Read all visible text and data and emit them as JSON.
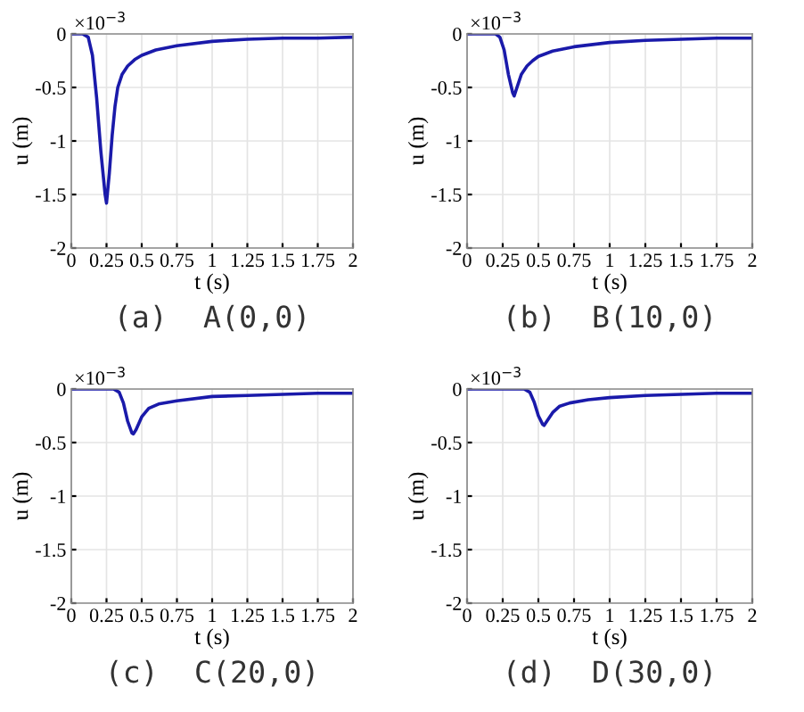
{
  "chart_data": [
    {
      "type": "line",
      "title": "(a)  A(0,0)",
      "xlabel": "t (s)",
      "ylabel": "u (m)",
      "annotations": [
        "×10$^{−3}$"
      ],
      "grid": true,
      "xlim": [
        0,
        2
      ],
      "ylim": [
        -2,
        0
      ],
      "xticks": [
        0,
        0.25,
        0.5,
        0.75,
        1,
        1.25,
        1.5,
        1.75,
        2
      ],
      "yticks": [
        -2,
        -1.5,
        -1,
        -0.5,
        0
      ],
      "x": [
        0,
        0.08,
        0.12,
        0.15,
        0.18,
        0.21,
        0.24,
        0.25,
        0.27,
        0.29,
        0.31,
        0.33,
        0.36,
        0.4,
        0.45,
        0.5,
        0.6,
        0.75,
        1,
        1.25,
        1.5,
        1.75,
        2
      ],
      "series": [
        {
          "color": "#1a1aaa",
          "values": [
            0,
            0,
            -0.03,
            -0.2,
            -0.6,
            -1.1,
            -1.5,
            -1.58,
            -1.3,
            -0.95,
            -0.68,
            -0.5,
            -0.38,
            -0.3,
            -0.24,
            -0.2,
            -0.15,
            -0.11,
            -0.07,
            -0.05,
            -0.04,
            -0.04,
            -0.03
          ]
        }
      ]
    },
    {
      "type": "line",
      "title": "(b)  B(10,0)",
      "xlabel": "t (s)",
      "ylabel": "u (m)",
      "annotations": [
        "×10$^{−3}$"
      ],
      "grid": true,
      "xlim": [
        0,
        2
      ],
      "ylim": [
        -2,
        0
      ],
      "xticks": [
        0,
        0.25,
        0.5,
        0.75,
        1,
        1.25,
        1.5,
        1.75,
        2
      ],
      "yticks": [
        -2,
        -1.5,
        -1,
        -0.5,
        0
      ],
      "x": [
        0,
        0.2,
        0.23,
        0.26,
        0.29,
        0.32,
        0.33,
        0.35,
        0.38,
        0.42,
        0.46,
        0.5,
        0.6,
        0.75,
        1,
        1.25,
        1.5,
        1.75,
        2
      ],
      "series": [
        {
          "color": "#1a1aaa",
          "values": [
            0,
            0,
            -0.03,
            -0.15,
            -0.38,
            -0.55,
            -0.58,
            -0.5,
            -0.38,
            -0.3,
            -0.25,
            -0.21,
            -0.16,
            -0.12,
            -0.08,
            -0.06,
            -0.05,
            -0.04,
            -0.04
          ]
        }
      ]
    },
    {
      "type": "line",
      "title": "(c)  C(20,0)",
      "xlabel": "t (s)",
      "ylabel": "u (m)",
      "annotations": [
        "×10$^{−3}$"
      ],
      "grid": true,
      "xlim": [
        0,
        2
      ],
      "ylim": [
        -2,
        0
      ],
      "xticks": [
        0,
        0.25,
        0.5,
        0.75,
        1,
        1.25,
        1.5,
        1.75,
        2
      ],
      "yticks": [
        -2,
        -1.5,
        -1,
        -0.5,
        0
      ],
      "x": [
        0,
        0.3,
        0.34,
        0.37,
        0.4,
        0.43,
        0.44,
        0.46,
        0.5,
        0.55,
        0.62,
        0.75,
        1,
        1.25,
        1.5,
        1.75,
        2
      ],
      "series": [
        {
          "color": "#1a1aaa",
          "values": [
            0,
            0,
            -0.03,
            -0.13,
            -0.3,
            -0.41,
            -0.42,
            -0.38,
            -0.26,
            -0.18,
            -0.14,
            -0.11,
            -0.07,
            -0.06,
            -0.05,
            -0.04,
            -0.04
          ]
        }
      ]
    },
    {
      "type": "line",
      "title": "(d)  D(30,0)",
      "xlabel": "t (s)",
      "ylabel": "u (m)",
      "annotations": [
        "×10$^{−3}$"
      ],
      "grid": true,
      "xlim": [
        0,
        2
      ],
      "ylim": [
        -2,
        0
      ],
      "xticks": [
        0,
        0.25,
        0.5,
        0.75,
        1,
        1.25,
        1.5,
        1.75,
        2
      ],
      "yticks": [
        -2,
        -1.5,
        -1,
        -0.5,
        0
      ],
      "x": [
        0,
        0.4,
        0.44,
        0.47,
        0.5,
        0.53,
        0.54,
        0.56,
        0.6,
        0.65,
        0.72,
        0.85,
        1,
        1.25,
        1.5,
        1.75,
        2
      ],
      "series": [
        {
          "color": "#1a1aaa",
          "values": [
            0,
            0,
            -0.03,
            -0.12,
            -0.25,
            -0.33,
            -0.34,
            -0.3,
            -0.22,
            -0.16,
            -0.13,
            -0.1,
            -0.08,
            -0.06,
            -0.05,
            -0.04,
            -0.04
          ]
        }
      ]
    }
  ]
}
